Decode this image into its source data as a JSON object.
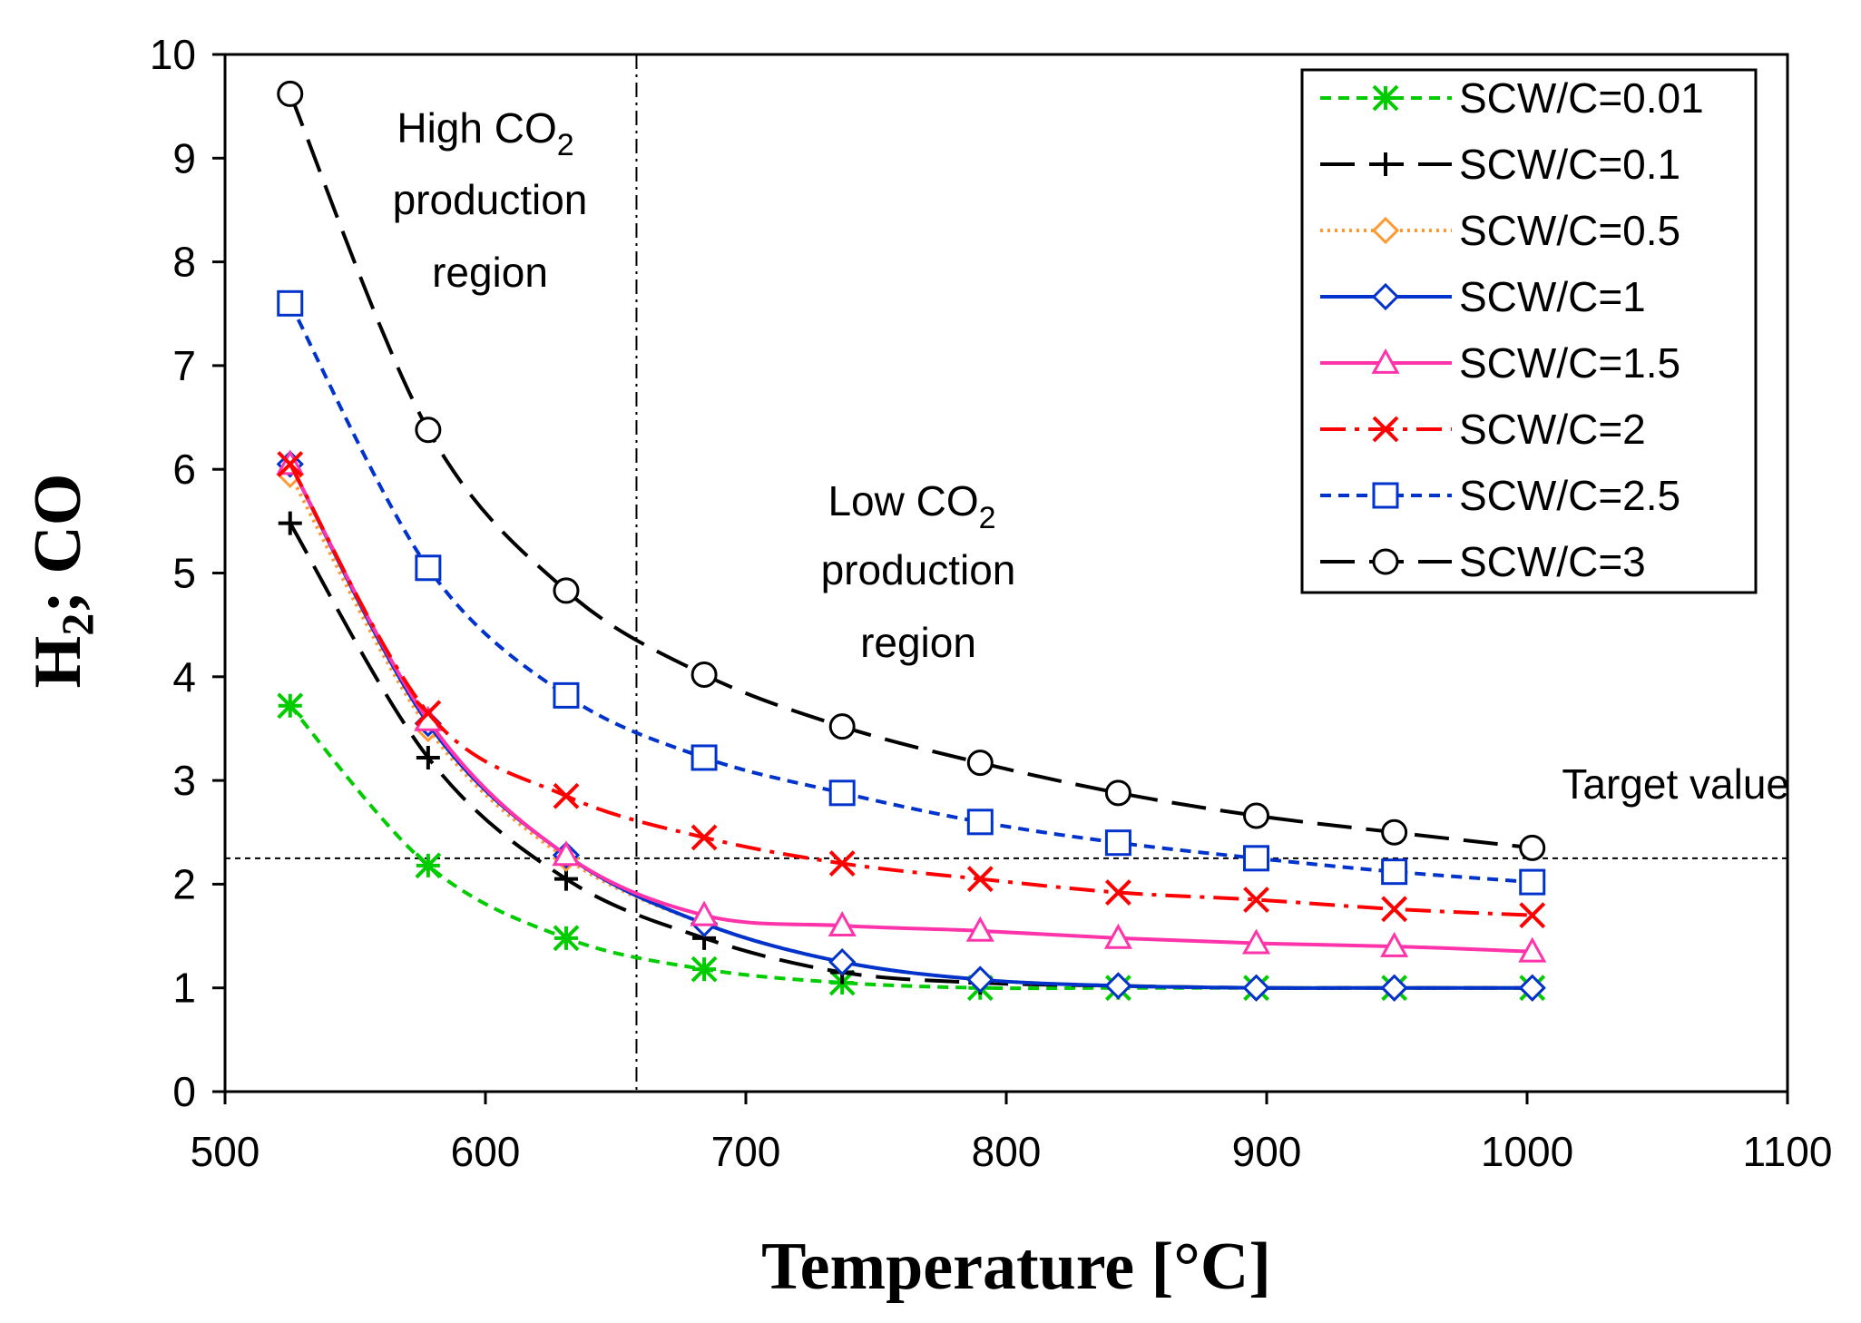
{
  "chart_data": {
    "type": "line",
    "title": "",
    "xlabel": "Temperature [°C]",
    "ylabel_main": "H",
    "ylabel_sub": "2",
    "ylabel_rest": "; CO",
    "xlim": [
      500,
      1100
    ],
    "ylim": [
      0,
      10
    ],
    "xticks": [
      500,
      600,
      700,
      800,
      900,
      1000,
      1100
    ],
    "yticks": [
      0,
      1,
      2,
      3,
      4,
      5,
      6,
      7,
      8,
      9,
      10
    ],
    "xtick_labels": [
      "500",
      "600",
      "700",
      "800",
      "900",
      "1000",
      "1100"
    ],
    "ytick_labels": [
      "0",
      "1",
      "2",
      "3",
      "4",
      "5",
      "6",
      "7",
      "8",
      "9",
      "10"
    ],
    "grid": false,
    "legend_position": "top-right",
    "x": [
      525,
      578,
      631,
      684,
      737,
      790,
      843,
      896,
      949,
      1002
    ],
    "series": [
      {
        "name": "SCW/C=0.01",
        "color": "#00cc00",
        "dash": "short-dash",
        "marker": "asterisk",
        "values": [
          3.72,
          2.18,
          1.48,
          1.18,
          1.05,
          1.0,
          1.0,
          1.0,
          1.0,
          1.0
        ]
      },
      {
        "name": "SCW/C=0.1",
        "color": "#000000",
        "dash": "long-dash",
        "marker": "plus",
        "values": [
          5.48,
          3.22,
          2.05,
          1.48,
          1.15,
          1.05,
          1.02,
          1.0,
          1.0,
          1.0
        ]
      },
      {
        "name": "SCW/C=0.5",
        "color": "#ff9933",
        "dash": "dotted",
        "marker": "diamond",
        "values": [
          5.95,
          3.5,
          2.25,
          1.62,
          1.25,
          1.08,
          1.02,
          1.0,
          1.0,
          1.0
        ]
      },
      {
        "name": "SCW/C=1",
        "color": "#0033cc",
        "dash": "solid",
        "marker": "diamond",
        "values": [
          6.05,
          3.55,
          2.28,
          1.62,
          1.25,
          1.08,
          1.02,
          1.0,
          1.0,
          1.0
        ]
      },
      {
        "name": "SCW/C=1.5",
        "color": "#ff33aa",
        "dash": "solid",
        "marker": "triangle",
        "values": [
          6.05,
          3.58,
          2.28,
          1.7,
          1.6,
          1.55,
          1.48,
          1.43,
          1.4,
          1.35
        ]
      },
      {
        "name": "SCW/C=2",
        "color": "#ff0000",
        "dash": "dash-dot",
        "marker": "x",
        "values": [
          6.05,
          3.65,
          2.85,
          2.45,
          2.2,
          2.05,
          1.92,
          1.85,
          1.76,
          1.7
        ]
      },
      {
        "name": "SCW/C=2.5",
        "color": "#0033cc",
        "dash": "short-dash",
        "marker": "square",
        "values": [
          7.6,
          5.05,
          3.82,
          3.22,
          2.88,
          2.6,
          2.4,
          2.25,
          2.12,
          2.02
        ]
      },
      {
        "name": "SCW/C=3",
        "color": "#000000",
        "dash": "long-dash",
        "marker": "circle",
        "values": [
          9.62,
          6.38,
          4.83,
          4.02,
          3.52,
          3.17,
          2.88,
          2.66,
          2.5,
          2.35
        ]
      }
    ],
    "reference_lines": {
      "target_value_y": 2.25,
      "region_boundary_x": 658
    },
    "annotations": {
      "high_region": {
        "line1_prefix": "High CO",
        "line1_sub": "2",
        "line2": "production",
        "line3": "region"
      },
      "low_region": {
        "line1_prefix": "Low CO",
        "line1_sub": "2",
        "line2": "production",
        "line3": "region"
      },
      "target": "Target value"
    }
  }
}
